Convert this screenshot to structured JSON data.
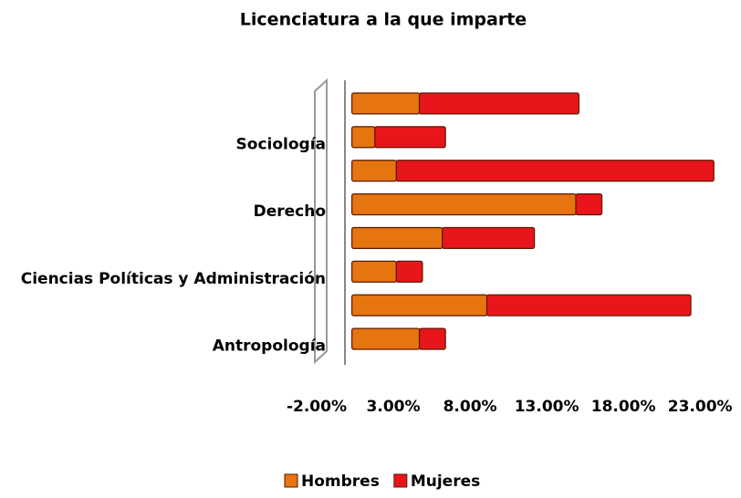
{
  "chart_data": {
    "type": "stacked-barh",
    "title": "Licenciatura a la que imparte",
    "categories": [
      null,
      "Sociología",
      null,
      "Derecho",
      null,
      "Ciencias Políticas y Administración",
      null,
      "Antropología"
    ],
    "series": [
      {
        "name": "Hombres",
        "color": "#e6740f",
        "values": [
          4.4,
          1.5,
          2.9,
          14.6,
          5.9,
          2.9,
          8.8,
          4.4
        ]
      },
      {
        "name": "Mujeres",
        "color": "#e8151b",
        "values": [
          10.4,
          4.6,
          20.7,
          1.7,
          6.0,
          1.7,
          13.3,
          1.7
        ]
      }
    ],
    "xlim": [
      -2,
      24
    ],
    "xticks": [
      {
        "value": -2,
        "label": "-2.00%"
      },
      {
        "value": 3,
        "label": "3.00%"
      },
      {
        "value": 8,
        "label": "8.00%"
      },
      {
        "value": 13,
        "label": "13.00%"
      },
      {
        "value": 18,
        "label": "18.00%"
      },
      {
        "value": 23,
        "label": "23.00%"
      }
    ],
    "legend": "bottom"
  }
}
